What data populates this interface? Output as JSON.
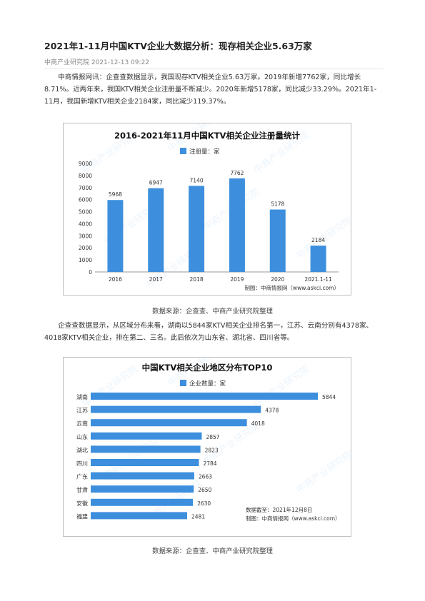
{
  "article": {
    "title": "2021年1-11月中国KTV企业大数据分析：现存相关企业5.63万家",
    "meta": "中商产业研究院 2021-12-13 09:22",
    "para1": "中商情报网讯：企查查数据显示，我国现存KTV相关企业5.63万家。2019年新增7762家，同比增长8.71%。近两年来，我国KTV相关企业注册量不断减少。2020年新增5178家，同比减少33.29%。2021年1-11月，我国新增KTV相关企业2184家，同比减少119.37%。",
    "caption1": "数据来源：企查查、中商产业研究院整理",
    "para2": "企查查数据显示，从区域分布来看，湖南以5844家KTV相关企业排名第一，江苏、云南分别有4378家、4018家KTV相关企业，排在第二、三名。此后依次为山东省、湖北省、四川省等。",
    "caption2": "数据来源：企查查、中商产业研究院整理"
  },
  "chart_data": [
    {
      "type": "bar",
      "title": "2016-2021年11月中国KTV相关企业注册量统计",
      "legend": "注册量：家",
      "categories": [
        "2016",
        "2017",
        "2018",
        "2019",
        "2020",
        "2021.1-11"
      ],
      "values": [
        5968,
        6947,
        7140,
        7762,
        5178,
        2184
      ],
      "ylim": [
        0,
        9000
      ],
      "yticks": [
        0,
        1000,
        2000,
        3000,
        4000,
        5000,
        6000,
        7000,
        8000,
        9000
      ],
      "credit": "制图：中商情报网（www.askci.com）",
      "color": "#3d8fdd"
    },
    {
      "type": "bar",
      "orientation": "horizontal",
      "title": "中国KTV相关企业地区分布TOP10",
      "legend": "企业数量：家",
      "categories": [
        "湖南",
        "江苏",
        "云南",
        "山东",
        "湖北",
        "四川",
        "广东",
        "甘肃",
        "安徽",
        "福建"
      ],
      "values": [
        5844,
        4378,
        4018,
        2857,
        2823,
        2784,
        2663,
        2650,
        2630,
        2481
      ],
      "note_date": "数据截至：2021年12月8日",
      "credit": "制图：中商情报网（www.askci.com）",
      "color": "#3d8fdd"
    }
  ],
  "watermark": "中商产业研究院"
}
